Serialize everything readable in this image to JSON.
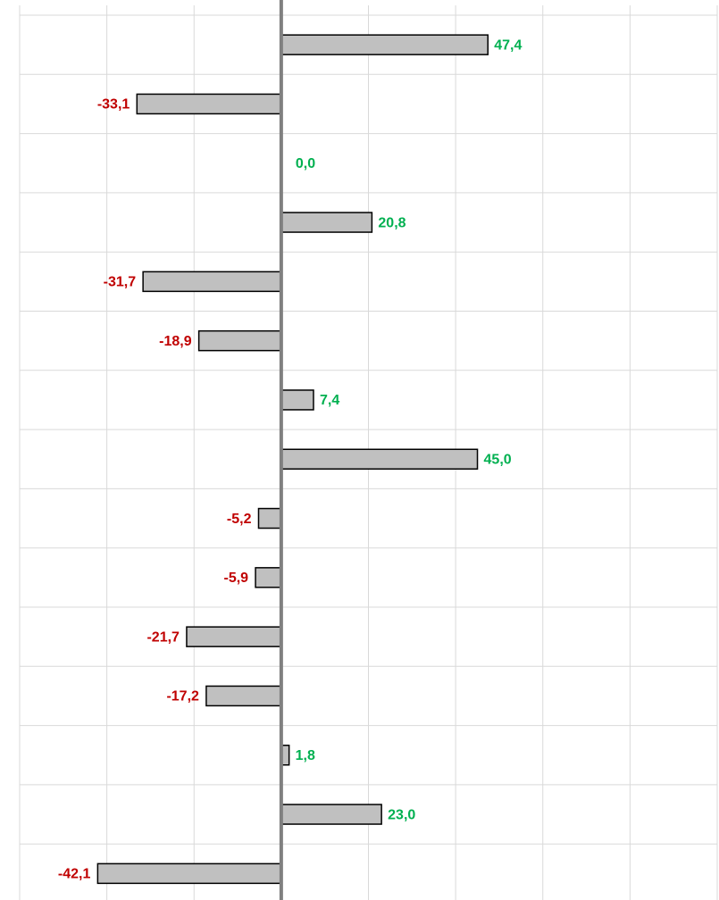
{
  "chart_data": {
    "type": "bar",
    "orientation": "horizontal",
    "values": [
      47.4,
      -33.1,
      0.0,
      20.8,
      -31.7,
      -18.9,
      7.4,
      45.0,
      -5.2,
      -5.9,
      -21.7,
      -17.2,
      1.8,
      23.0,
      -42.1
    ],
    "value_labels": [
      "47,4",
      "-33,1",
      "0,0",
      "20,8",
      "-31,7",
      "-18,9",
      "7,4",
      "45,0",
      "-5,2",
      "-5,9",
      "-21,7",
      "-17,2",
      "1,8",
      "23,0",
      "-42,1"
    ],
    "color": "#c0c0c0",
    "positive_label_color": "#00b050",
    "negative_label_color": "#c00000",
    "xlim": [
      -60,
      100
    ],
    "xticks": [
      -60,
      -40,
      -20,
      0,
      20,
      40,
      60,
      80,
      100
    ],
    "grid": true
  }
}
